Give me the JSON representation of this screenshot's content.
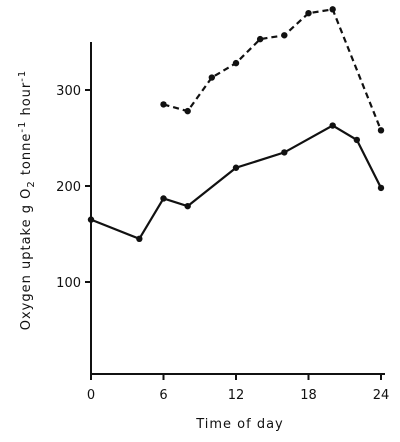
{
  "chart_data": {
    "type": "line",
    "title": "",
    "xlabel": "Time of day",
    "ylabel_parts": {
      "main": "Oxygen uptake  g O",
      "sub": "2",
      "tail": " tonne",
      "sup1": "-1",
      "hour": " hour",
      "sup2": "-1"
    },
    "xlim": [
      0,
      24
    ],
    "ylim": [
      0,
      400
    ],
    "x_ticks": [
      {
        "value": 0,
        "label": "0"
      },
      {
        "value": 6,
        "label": "6"
      },
      {
        "value": 12,
        "label": "12"
      },
      {
        "value": 18,
        "label": "18"
      },
      {
        "value": 24,
        "label": "24"
      }
    ],
    "y_ticks": [
      {
        "value": 100,
        "label": "100"
      },
      {
        "value": 200,
        "label": "200"
      },
      {
        "value": 300,
        "label": "300"
      }
    ],
    "grid": false,
    "series": [
      {
        "style": "dashed",
        "points": [
          {
            "x": 6,
            "y": 285
          },
          {
            "x": 8,
            "y": 278
          },
          {
            "x": 10,
            "y": 313
          },
          {
            "x": 12,
            "y": 328
          },
          {
            "x": 14,
            "y": 353
          },
          {
            "x": 16,
            "y": 357
          },
          {
            "x": 18,
            "y": 380
          },
          {
            "x": 20,
            "y": 384
          },
          {
            "x": 24,
            "y": 258
          }
        ]
      },
      {
        "style": "solid",
        "points": [
          {
            "x": 0,
            "y": 165
          },
          {
            "x": 4,
            "y": 145
          },
          {
            "x": 6,
            "y": 187
          },
          {
            "x": 8,
            "y": 179
          },
          {
            "x": 12,
            "y": 219
          },
          {
            "x": 16,
            "y": 235
          },
          {
            "x": 20,
            "y": 263
          },
          {
            "x": 22,
            "y": 248
          },
          {
            "x": 24,
            "y": 198
          }
        ]
      }
    ]
  }
}
